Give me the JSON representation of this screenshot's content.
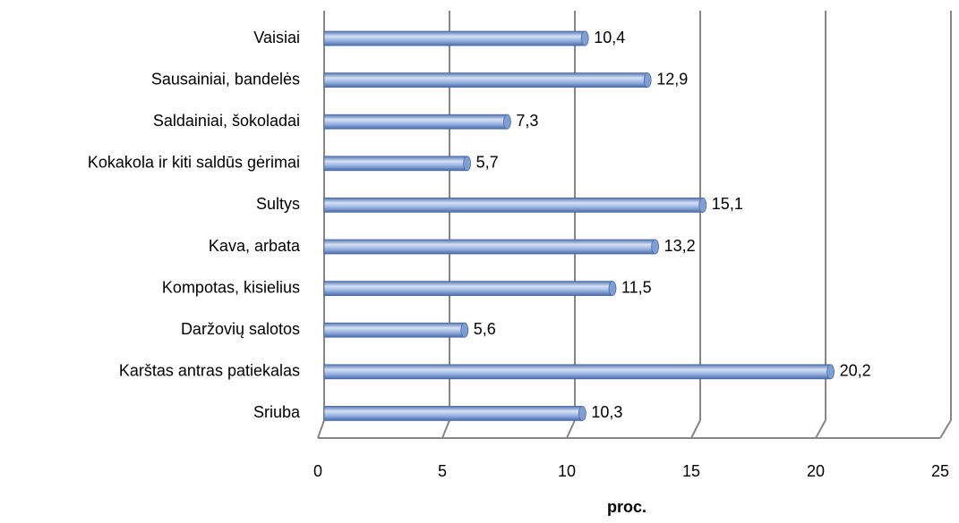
{
  "chart_data": {
    "type": "bar",
    "orientation": "horizontal",
    "categories": [
      "Vaisiai",
      "Sausainiai, bandelės",
      "Saldainiai, šokoladai",
      "Kokakola ir kiti saldūs gėrimai",
      "Sultys",
      "Kava, arbata",
      "Kompotas, kisielius",
      "Daržovių salotos",
      "Karštas antras patiekalas",
      "Sriuba"
    ],
    "values": [
      10.4,
      12.9,
      7.3,
      5.7,
      15.1,
      13.2,
      11.5,
      5.6,
      20.2,
      10.3
    ],
    "value_labels": [
      "10,4",
      "12,9",
      "7,3",
      "5,7",
      "15,1",
      "13,2",
      "11,5",
      "5,6",
      "20,2",
      "10,3"
    ],
    "color": "#7f9fd4",
    "xlabel": "proc.",
    "xlim": [
      0,
      25
    ],
    "xticks": [
      0,
      5,
      10,
      15,
      20,
      25
    ],
    "grid": true
  }
}
